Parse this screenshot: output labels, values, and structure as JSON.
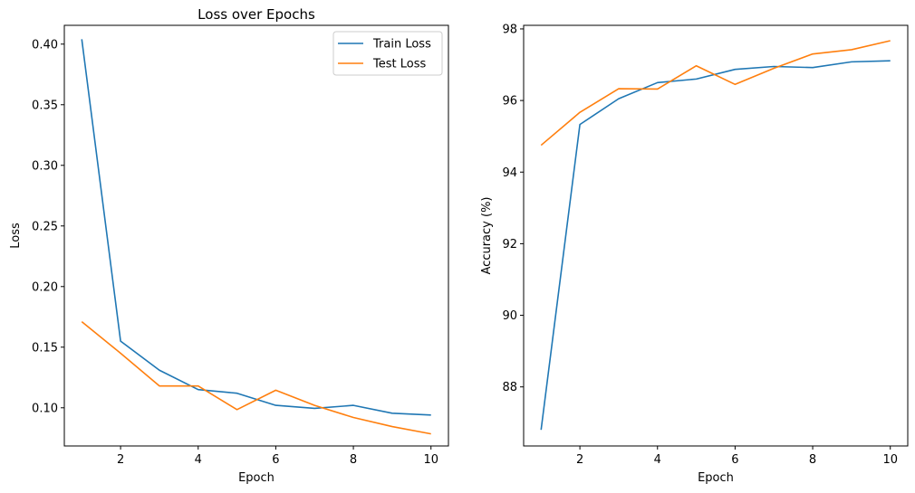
{
  "chart_data": [
    {
      "type": "line",
      "title": "Loss over Epochs",
      "xlabel": "Epoch",
      "ylabel": "Loss",
      "xlim": [
        0.55,
        10.45
      ],
      "ylim": [
        0.0685,
        0.4155
      ],
      "xticks": [
        2,
        4,
        6,
        8,
        10
      ],
      "xtick_labels": [
        "2",
        "4",
        "6",
        "8",
        "10"
      ],
      "yticks": [
        0.1,
        0.15,
        0.2,
        0.25,
        0.3,
        0.35,
        0.4
      ],
      "ytick_labels": [
        "0.10",
        "0.15",
        "0.20",
        "0.25",
        "0.30",
        "0.35",
        "0.40"
      ],
      "legend_position": "top-right",
      "grid": false,
      "x": [
        1,
        2,
        3,
        4,
        5,
        6,
        7,
        8,
        9,
        10
      ],
      "series": [
        {
          "name": "Train Loss",
          "color": "#1f77b4",
          "values": [
            0.404,
            0.155,
            0.131,
            0.115,
            0.112,
            0.102,
            0.0995,
            0.102,
            0.0955,
            0.094
          ]
        },
        {
          "name": "Test Loss",
          "color": "#ff7f0e",
          "values": [
            0.171,
            0.145,
            0.118,
            0.118,
            0.0985,
            0.1145,
            0.102,
            0.092,
            0.0845,
            0.0785
          ]
        }
      ]
    },
    {
      "type": "line",
      "title": "",
      "xlabel": "Epoch",
      "ylabel": "Accuracy (%)",
      "xlim": [
        0.55,
        10.45
      ],
      "ylim": [
        86.35,
        98.1
      ],
      "xticks": [
        2,
        4,
        6,
        8,
        10
      ],
      "xtick_labels": [
        "2",
        "4",
        "6",
        "8",
        "10"
      ],
      "yticks": [
        88,
        90,
        92,
        94,
        96,
        98
      ],
      "ytick_labels": [
        "88",
        "90",
        "92",
        "94",
        "96",
        "98"
      ],
      "grid": false,
      "x": [
        1,
        2,
        3,
        4,
        5,
        6,
        7,
        8,
        9,
        10
      ],
      "series": [
        {
          "color": "#1f77b4",
          "values": [
            86.8,
            95.33,
            96.05,
            96.5,
            96.6,
            96.87,
            96.95,
            96.92,
            97.08,
            97.11
          ]
        },
        {
          "color": "#ff7f0e",
          "values": [
            94.75,
            95.67,
            96.33,
            96.32,
            96.97,
            96.45,
            96.9,
            97.3,
            97.42,
            97.67
          ]
        }
      ]
    }
  ]
}
